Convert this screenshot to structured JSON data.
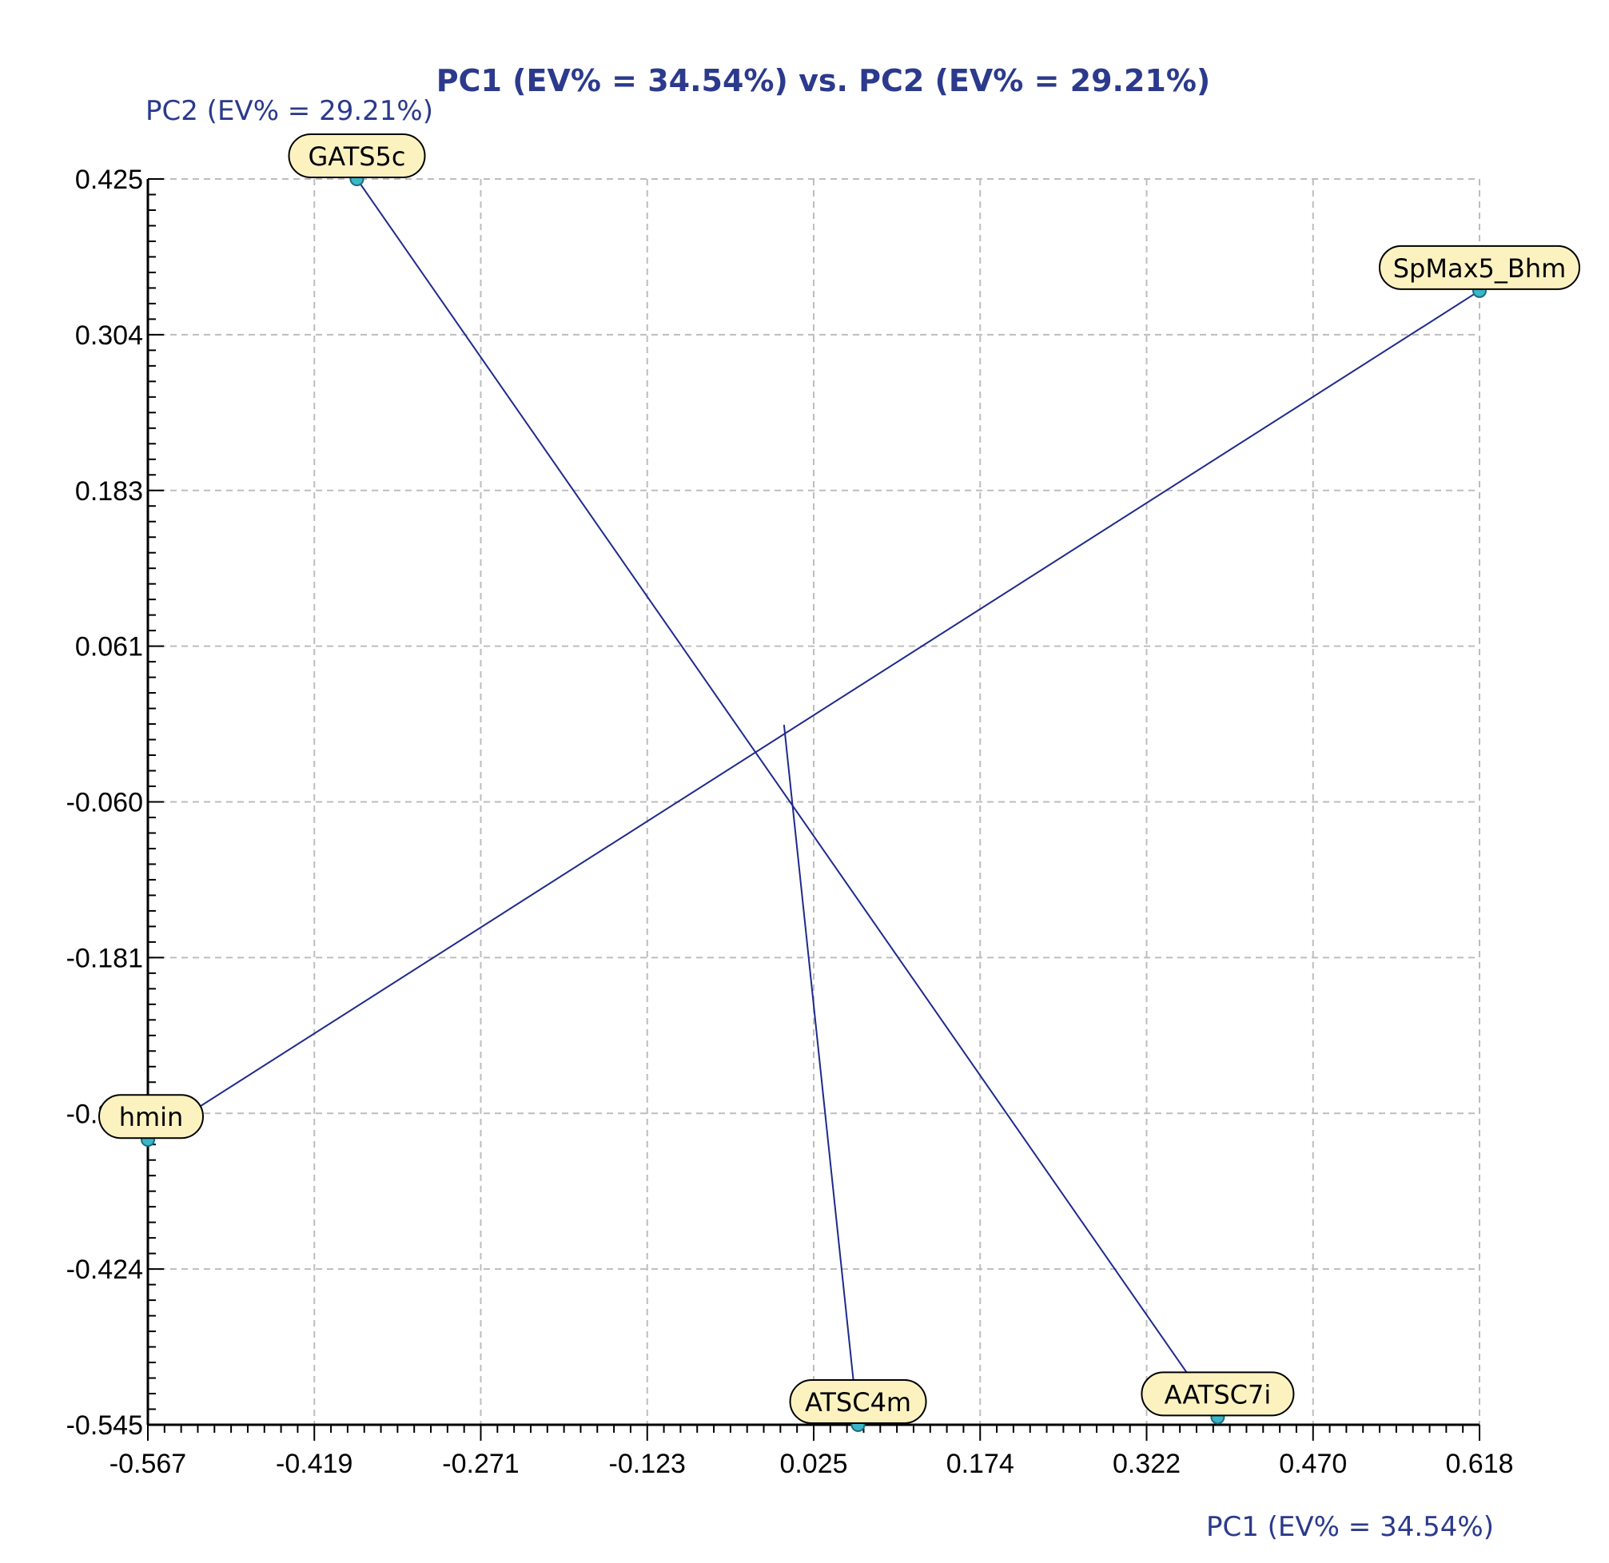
{
  "chart_data": {
    "type": "scatter",
    "title": "PC1 (EV% = 34.54%) vs. PC2 (EV% = 29.21%)",
    "xlabel": "PC1 (EV% = 34.54%)",
    "ylabel": "PC2 (EV% = 29.21%)",
    "xlim": [
      -0.567,
      0.618
    ],
    "ylim": [
      -0.545,
      0.425
    ],
    "x_ticks": [
      "-0.567",
      "-0.419",
      "-0.271",
      "-0.123",
      "0.025",
      "0.174",
      "0.322",
      "0.470",
      "0.618"
    ],
    "y_ticks": [
      "0.425",
      "0.304",
      "0.183",
      "0.061",
      "-0.060",
      "-0.181",
      "-0.302",
      "-0.424",
      "-0.545"
    ],
    "grid": true,
    "points": [
      {
        "label": "GATS5c",
        "x": -0.381,
        "y": 0.425
      },
      {
        "label": "SpMax5_Bhm",
        "x": 0.618,
        "y": 0.338
      },
      {
        "label": "hmin",
        "x": -0.567,
        "y": -0.323
      },
      {
        "label": "ATSC4m",
        "x": 0.065,
        "y": -0.545
      },
      {
        "label": "AATSC7i",
        "x": 0.385,
        "y": -0.539
      }
    ],
    "connections": [
      {
        "from": "GATS5c",
        "to": "AATSC7i"
      },
      {
        "from": "SpMax5_Bhm",
        "to": "hmin"
      },
      {
        "from": "ATSC4m",
        "to": "center"
      }
    ],
    "center_point": {
      "x": -0.0009,
      "y": 0.0
    }
  }
}
